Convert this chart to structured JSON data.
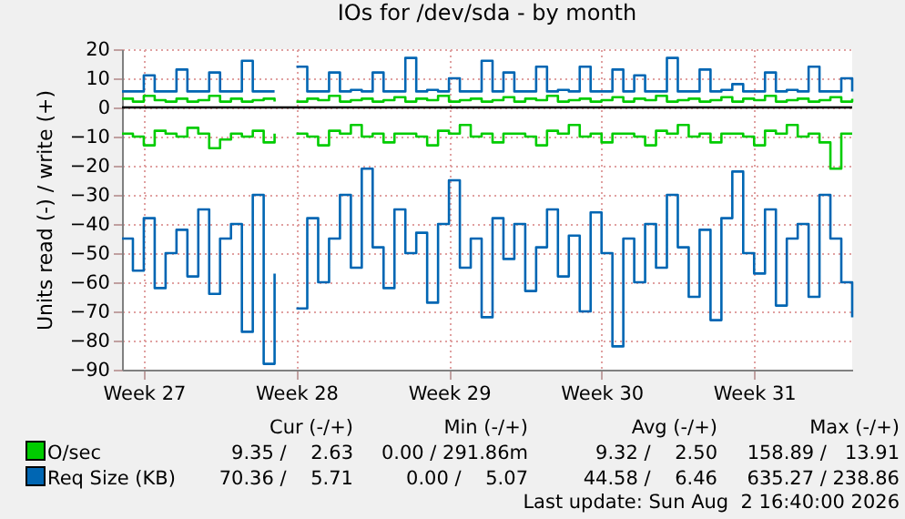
{
  "chart_data": {
    "type": "step",
    "title": "IOs for /dev/sda - by month",
    "ylabel": "Units read (-) / write (+)",
    "categories": [
      null,
      null,
      "Week 27",
      null,
      null,
      null,
      null,
      null,
      null,
      null,
      null,
      null,
      null,
      null,
      null,
      null,
      "Week 28",
      null,
      null,
      null,
      null,
      null,
      null,
      null,
      null,
      null,
      null,
      null,
      null,
      null,
      "Week 29",
      null,
      null,
      null,
      null,
      null,
      null,
      null,
      null,
      null,
      null,
      null,
      null,
      null,
      "Week 30",
      null,
      null,
      null,
      null,
      null,
      null,
      null,
      null,
      null,
      null,
      null,
      null,
      null,
      "Week 31",
      null,
      null,
      null,
      null,
      null,
      null,
      null,
      null,
      null
    ],
    "series": [
      {
        "name": "O/sec",
        "color": "#00cc00",
        "values": [
          3,
          2,
          4,
          2.5,
          2,
          3,
          2,
          2.5,
          4,
          2,
          3,
          2,
          2.5,
          3,
          2,
          null,
          2,
          3,
          2.5,
          4,
          2,
          2.5,
          3,
          2,
          2.5,
          3.5,
          2,
          3,
          2.5,
          4,
          2,
          2.5,
          3,
          2,
          2.5,
          3.5,
          2,
          3,
          2.5,
          4,
          2,
          2.5,
          3,
          2,
          2.5,
          3.5,
          2,
          3,
          2.5,
          4,
          2,
          2.5,
          3,
          2,
          2.5,
          3.5,
          2,
          3,
          2.5,
          4,
          2,
          2.5,
          3,
          2,
          2.5,
          3.5,
          2,
          3
        ]
      },
      {
        "color": "#00cc00",
        "values": [
          -9,
          -10,
          -13,
          -8,
          -9,
          -10,
          -7,
          -9,
          -14,
          -11,
          -9,
          -10,
          -8,
          -12,
          -9,
          null,
          -9,
          -10,
          -13,
          -8,
          -9,
          -6,
          -10,
          -9,
          -12,
          -9,
          -9,
          -10,
          -13,
          -8,
          -9,
          -6,
          -10,
          -9,
          -12,
          -9,
          -9,
          -10,
          -13,
          -8,
          -9,
          -6,
          -10,
          -9,
          -12,
          -9,
          -9,
          -10,
          -13,
          -8,
          -9,
          -6,
          -10,
          -9,
          -12,
          -9,
          -9,
          -10,
          -13,
          -8,
          -9,
          -6,
          -10,
          -9,
          -12,
          -21,
          -9,
          -9
        ]
      },
      {
        "name": "Req Size (KB)",
        "color": "#0066b3",
        "values": [
          5.5,
          5.5,
          11,
          5.5,
          5.5,
          13,
          5.5,
          5.5,
          12,
          5.5,
          5.5,
          16,
          5.5,
          5.5,
          5.5,
          null,
          14,
          5.5,
          5.5,
          12,
          5.5,
          6,
          5.5,
          12,
          5.5,
          5.5,
          17,
          5.5,
          6,
          5.5,
          10,
          5.5,
          5.5,
          16,
          5.5,
          12,
          5.5,
          5.5,
          14,
          5.5,
          6,
          5.5,
          14,
          5.5,
          5.5,
          13,
          5.5,
          11,
          5.5,
          5.5,
          17,
          5.5,
          5.5,
          13,
          5.5,
          6,
          8,
          5.5,
          5.5,
          12,
          5.5,
          6,
          5.5,
          14,
          5.5,
          5.5,
          10,
          5.5
        ]
      },
      {
        "color": "#0066b3",
        "values": [
          -45,
          -56,
          -38,
          -62,
          -50,
          -42,
          -58,
          -35,
          -64,
          -45,
          -40,
          -77,
          -30,
          -88,
          -57,
          null,
          -69,
          -38,
          -60,
          -45,
          -30,
          -55,
          -21,
          -48,
          -62,
          -35,
          -50,
          -43,
          -67,
          -40,
          -25,
          -55,
          -45,
          -72,
          -38,
          -52,
          -40,
          -63,
          -48,
          -35,
          -58,
          -44,
          -70,
          -36,
          -50,
          -82,
          -45,
          -60,
          -40,
          -55,
          -30,
          -48,
          -65,
          -42,
          -73,
          -38,
          -22,
          -50,
          -57,
          -35,
          -68,
          -45,
          -40,
          -65,
          -30,
          -45,
          -60,
          -72
        ]
      }
    ],
    "ylim": [
      -90,
      20
    ],
    "yticks": [
      -90,
      -80,
      -70,
      -60,
      -50,
      -40,
      -30,
      -20,
      -10,
      0,
      10,
      20
    ],
    "grid": true,
    "legend": "bottom",
    "ref_lines": [
      {
        "axis": "y",
        "value": 0,
        "color": "#000000"
      }
    ],
    "annotations": [
      "Cur (-/+)",
      "Min (-/+)",
      "Avg (-/+)",
      "Max (-/+)",
      "9.35 /    2.63",
      "0.00 / 291.86m",
      "9.32 /    2.50",
      "158.89 /   13.91",
      "70.36 /    5.71",
      "0.00 /    5.07",
      "44.58 /    6.46",
      "635.27 / 238.86",
      "Last update: Sun Aug  2 16:40:00 2026"
    ]
  }
}
